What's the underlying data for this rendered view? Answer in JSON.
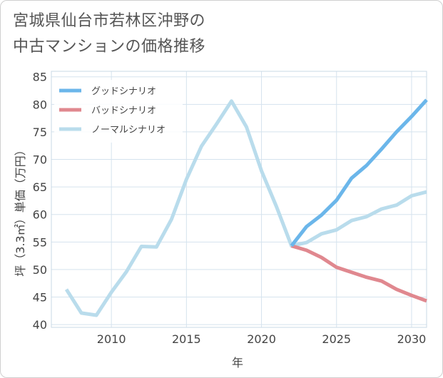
{
  "chart_data": {
    "type": "line",
    "title_lines": [
      "宮城県仙台市若林区沖野の",
      "中古マンションの価格推移"
    ],
    "xlabel": "年",
    "ylabel": "坪（3.3㎡）単価（万円）",
    "xlim": [
      2006,
      2031
    ],
    "ylim": [
      39.5,
      86
    ],
    "x_ticks": [
      2010,
      2015,
      2020,
      2025,
      2030
    ],
    "y_ticks": [
      40,
      45,
      50,
      55,
      60,
      65,
      70,
      75,
      80,
      85
    ],
    "grid": true,
    "legend_position": "top-left",
    "series": [
      {
        "name": "グッドシナリオ",
        "color": "#6bb6ea",
        "x": [
          2022,
          2023,
          2024,
          2025,
          2026,
          2027,
          2028,
          2029,
          2030,
          2031
        ],
        "y": [
          54.3,
          57.8,
          59.9,
          62.6,
          66.6,
          68.9,
          71.9,
          75.0,
          77.8,
          80.8
        ]
      },
      {
        "name": "バッドシナリオ",
        "color": "#e0888f",
        "x": [
          2022,
          2023,
          2024,
          2025,
          2026,
          2027,
          2028,
          2029,
          2030,
          2031
        ],
        "y": [
          54.3,
          53.5,
          52.2,
          50.4,
          49.5,
          48.6,
          47.9,
          46.4,
          45.3,
          44.3
        ]
      },
      {
        "name": "ノーマルシナリオ",
        "color": "#b9dcec",
        "x": [
          2007,
          2008,
          2009,
          2010,
          2011,
          2012,
          2013,
          2014,
          2015,
          2016,
          2017,
          2018,
          2019,
          2020,
          2021,
          2022,
          2023,
          2024,
          2025,
          2026,
          2027,
          2028,
          2029,
          2030,
          2031
        ],
        "y": [
          46.4,
          42.1,
          41.7,
          45.9,
          49.6,
          54.2,
          54.1,
          59.1,
          66.4,
          72.4,
          76.4,
          80.6,
          75.9,
          67.9,
          61.4,
          54.3,
          54.9,
          56.5,
          57.2,
          58.9,
          59.6,
          61.0,
          61.7,
          63.4,
          64.1
        ]
      }
    ]
  }
}
